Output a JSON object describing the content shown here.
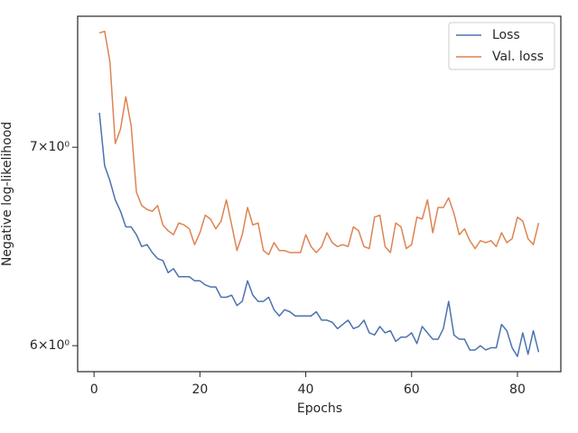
{
  "chart_data": {
    "type": "line",
    "xlabel": "Epochs",
    "ylabel": "Negative log-likelihood",
    "x": [
      1,
      2,
      3,
      4,
      5,
      6,
      7,
      8,
      9,
      10,
      11,
      12,
      13,
      14,
      15,
      16,
      17,
      18,
      19,
      20,
      21,
      22,
      23,
      24,
      25,
      26,
      27,
      28,
      29,
      30,
      31,
      32,
      33,
      34,
      35,
      36,
      37,
      38,
      39,
      40,
      41,
      42,
      43,
      44,
      45,
      46,
      47,
      48,
      49,
      50,
      51,
      52,
      53,
      54,
      55,
      56,
      57,
      58,
      59,
      60,
      61,
      62,
      63,
      64,
      65,
      66,
      67,
      68,
      69,
      70,
      71,
      72,
      73,
      74,
      75,
      76,
      77,
      78,
      79,
      80,
      81,
      82,
      83,
      84
    ],
    "series": [
      {
        "name": "Loss",
        "color": "#4c72b0",
        "values": [
          7.19,
          6.9,
          6.82,
          6.72,
          6.66,
          6.58,
          6.58,
          6.54,
          6.48,
          6.49,
          6.45,
          6.42,
          6.41,
          6.35,
          6.37,
          6.33,
          6.33,
          6.33,
          6.31,
          6.31,
          6.29,
          6.28,
          6.28,
          6.23,
          6.23,
          6.24,
          6.19,
          6.21,
          6.31,
          6.24,
          6.21,
          6.21,
          6.23,
          6.17,
          6.14,
          6.17,
          6.16,
          6.14,
          6.14,
          6.14,
          6.14,
          6.16,
          6.12,
          6.12,
          6.11,
          6.08,
          6.1,
          6.12,
          6.08,
          6.09,
          6.12,
          6.06,
          6.05,
          6.09,
          6.06,
          6.07,
          6.02,
          6.04,
          6.04,
          6.06,
          6.01,
          6.09,
          6.06,
          6.03,
          6.03,
          6.08,
          6.21,
          6.05,
          6.03,
          6.03,
          5.98,
          5.98,
          6.0,
          5.98,
          5.99,
          5.99,
          6.1,
          6.07,
          5.99,
          5.95,
          6.06,
          5.96,
          6.07,
          5.97
        ]
      },
      {
        "name": "Val. loss",
        "color": "#dd8452",
        "values": [
          7.65,
          7.66,
          7.48,
          7.02,
          7.1,
          7.28,
          7.12,
          6.76,
          6.69,
          6.67,
          6.66,
          6.69,
          6.59,
          6.56,
          6.54,
          6.6,
          6.59,
          6.57,
          6.49,
          6.55,
          6.64,
          6.62,
          6.57,
          6.61,
          6.72,
          6.59,
          6.46,
          6.54,
          6.68,
          6.59,
          6.6,
          6.46,
          6.44,
          6.5,
          6.46,
          6.46,
          6.45,
          6.45,
          6.45,
          6.54,
          6.48,
          6.45,
          6.48,
          6.55,
          6.5,
          6.48,
          6.49,
          6.48,
          6.58,
          6.56,
          6.48,
          6.47,
          6.63,
          6.64,
          6.48,
          6.45,
          6.6,
          6.58,
          6.47,
          6.49,
          6.63,
          6.62,
          6.72,
          6.55,
          6.68,
          6.68,
          6.73,
          6.65,
          6.54,
          6.57,
          6.51,
          6.47,
          6.51,
          6.5,
          6.51,
          6.48,
          6.55,
          6.5,
          6.52,
          6.63,
          6.61,
          6.52,
          6.49,
          6.6
        ]
      }
    ],
    "xlim": [
      -3.1,
      88.2
    ],
    "xticks": [
      0,
      20,
      40,
      60,
      80
    ],
    "ylim": [
      5.88,
      7.75
    ],
    "yscale": "log",
    "yticks": [
      {
        "value": 6,
        "label": "6×10⁰"
      },
      {
        "value": 7,
        "label": "7×10⁰"
      }
    ],
    "legend": "upper right"
  }
}
